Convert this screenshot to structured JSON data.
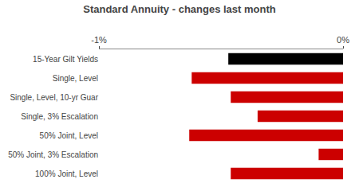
{
  "chart_data": {
    "type": "bar",
    "orientation": "horizontal",
    "title": "Standard Annuity - changes last month",
    "categories": [
      "15-Year Gilt Yields",
      "Single, Level",
      "Single, Level, 10-yr Guar",
      "Single, 3% Escalation",
      "50% Joint, Level",
      "50% Joint, 3% Escalation",
      "100% Joint, Level"
    ],
    "values": [
      -0.47,
      -0.62,
      -0.46,
      -0.35,
      -0.63,
      -0.1,
      -0.46
    ],
    "colors": [
      "#000000",
      "#cc0000",
      "#cc0000",
      "#cc0000",
      "#cc0000",
      "#cc0000",
      "#cc0000"
    ],
    "xlim": [
      -1.0,
      0.0
    ],
    "xticks": [
      {
        "value": -1.0,
        "label": "-1%"
      },
      {
        "value": 0.0,
        "label": "0%"
      }
    ],
    "grid": false
  }
}
